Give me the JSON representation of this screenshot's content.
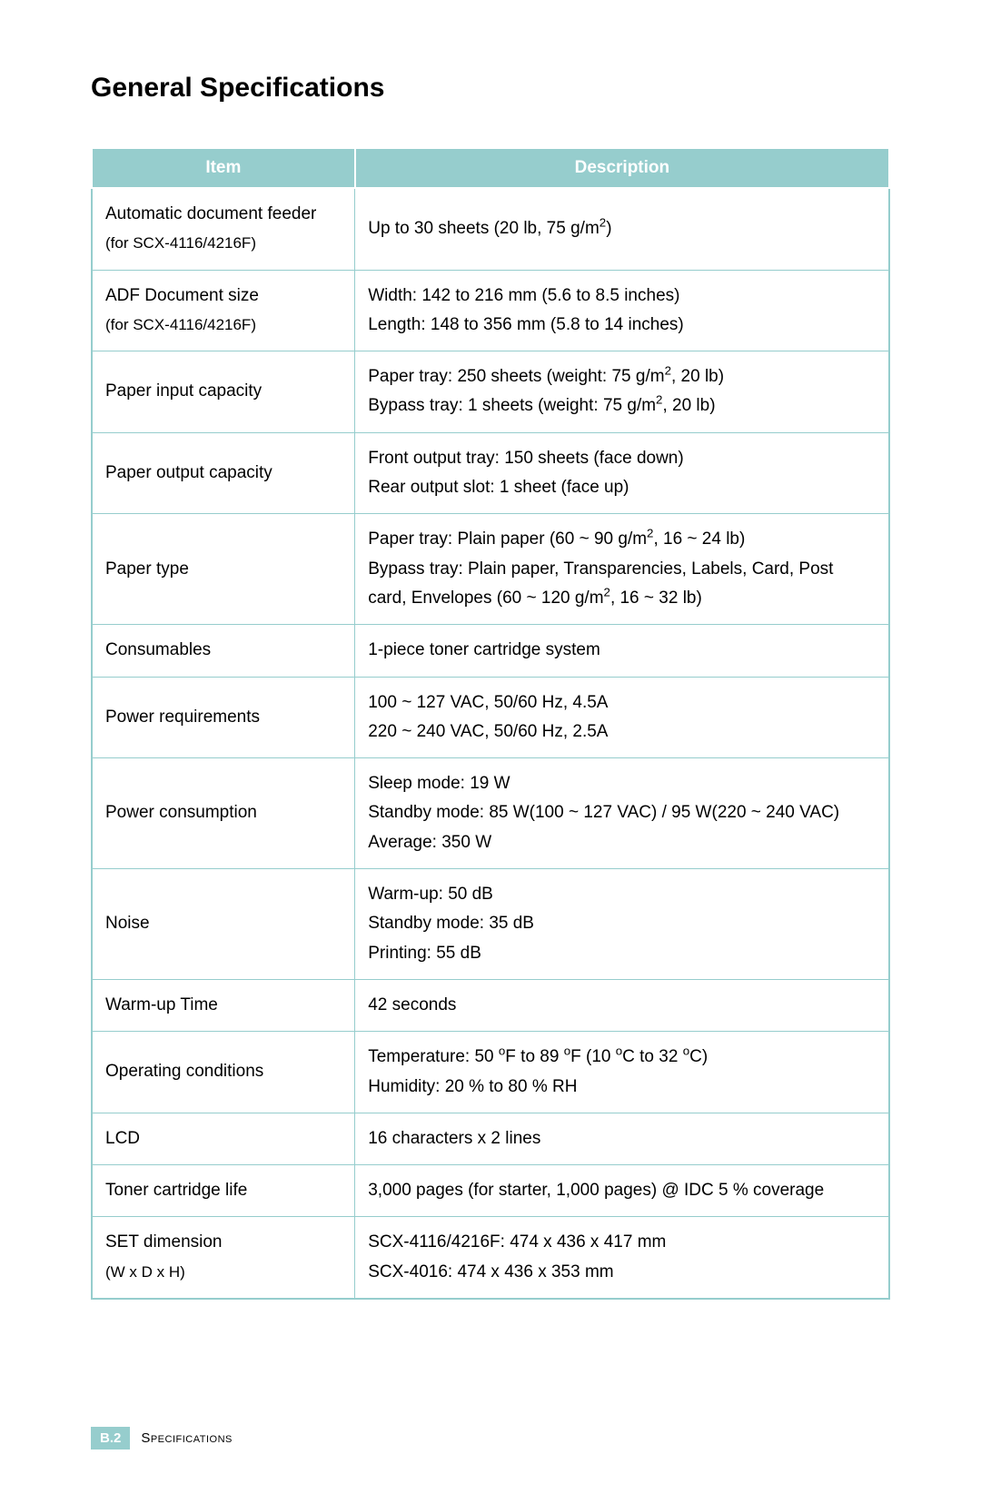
{
  "title": "General Specifications",
  "table": {
    "header_bg": "#96cdcd",
    "header_fg": "#ffffff",
    "border_color": "#96cdcd",
    "columns": [
      "Item",
      "Description"
    ],
    "rows": [
      {
        "item_main": "Automatic document feeder",
        "item_sub": " (for SCX-4116/4216F)",
        "desc_lines": [
          "Up to 30 sheets (20 lb, 75 g/m²)"
        ]
      },
      {
        "item_main": "ADF Document size",
        "item_sub_newline": "(for SCX-4116/4216F)",
        "desc_lines": [
          "Width: 142 to 216 mm (5.6 to 8.5 inches)",
          "Length: 148 to 356 mm (5.8 to 14 inches)"
        ]
      },
      {
        "item_main": "Paper input capacity",
        "desc_lines": [
          "Paper tray: 250 sheets (weight: 75 g/m², 20 lb)",
          "Bypass tray: 1 sheets (weight: 75 g/m², 20 lb)"
        ]
      },
      {
        "item_main": "Paper output capacity",
        "desc_lines": [
          "Front output tray: 150 sheets (face down)",
          "Rear output slot: 1 sheet (face up)"
        ]
      },
      {
        "item_main": "Paper type",
        "desc_lines": [
          "Paper tray: Plain paper (60 ~ 90 g/m², 16 ~ 24 lb)",
          "Bypass tray: Plain paper, Transparencies, Labels, Card, Post card, Envelopes (60 ~ 120 g/m², 16 ~ 32 lb)"
        ]
      },
      {
        "item_main": "Consumables",
        "desc_lines": [
          "1-piece toner cartridge system"
        ]
      },
      {
        "item_main": "Power requirements",
        "desc_lines": [
          "100 ~ 127 VAC, 50/60 Hz, 4.5A",
          "220 ~ 240 VAC, 50/60 Hz, 2.5A"
        ]
      },
      {
        "item_main": "Power consumption",
        "desc_lines": [
          "Sleep mode: 19 W",
          "Standby mode: 85 W(100 ~ 127 VAC) / 95 W(220 ~ 240 VAC)",
          "Average: 350 W"
        ]
      },
      {
        "item_main": "Noise",
        "desc_lines": [
          "Warm-up: 50 dB",
          "Standby mode: 35 dB",
          "Printing: 55 dB"
        ]
      },
      {
        "item_main": "Warm-up Time",
        "desc_lines": [
          "42 seconds"
        ]
      },
      {
        "item_main": "Operating conditions",
        "desc_lines": [
          "Temperature: 50 °F to 89 °F (10 °C to 32 °C)",
          "Humidity: 20 % to 80 % RH"
        ]
      },
      {
        "item_main": "LCD",
        "desc_lines": [
          "16 characters x 2 lines"
        ]
      },
      {
        "item_main": "Toner cartridge life",
        "desc_lines": [
          "3,000 pages (for starter, 1,000 pages) @ IDC 5 % coverage"
        ]
      },
      {
        "item_main": "SET dimension",
        "item_sub_newline": "(W x D x H)",
        "desc_lines": [
          "SCX-4116/4216F: 474 x 436 x 417 mm",
          "SCX-4016: 474 x 436 x 353 mm"
        ]
      }
    ]
  },
  "footer": {
    "page_badge": "B.2",
    "label": "Specifications",
    "badge_bg": "#96cdcd",
    "badge_fg": "#ffffff"
  }
}
